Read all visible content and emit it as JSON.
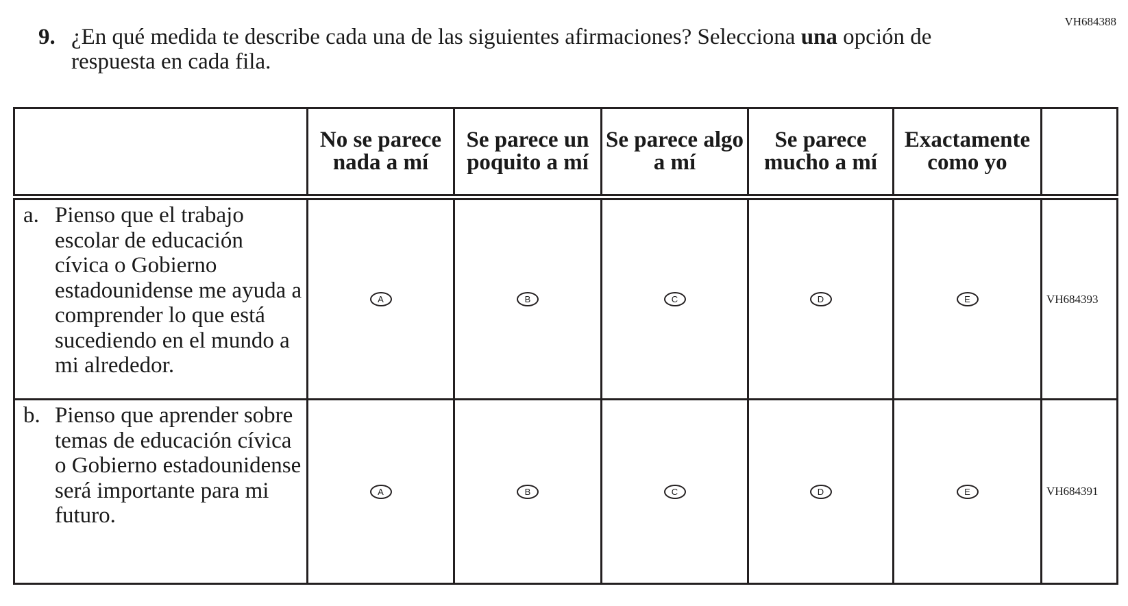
{
  "item_id": "VH684388",
  "question": {
    "number": "9.",
    "text_before": "¿En qué medida te describe cada una de las siguientes afirmaciones? Selecciona ",
    "text_bold": "una",
    "text_after": " opción de respuesta en cada fila."
  },
  "columns": [
    "No se parece nada a mí",
    "Se parece un poquito a mí",
    "Se parece algo a mí",
    "Se parece mucho a mí",
    "Exactamente como yo"
  ],
  "options": [
    "A",
    "B",
    "C",
    "D",
    "E"
  ],
  "rows": [
    {
      "letter": "a.",
      "text": "Pienso que el trabajo escolar de educación cívica o Gobierno estadounidense me ayuda a comprender lo que está sucediendo en el mundo a mi alrededor.",
      "id": "VH684393"
    },
    {
      "letter": "b.",
      "text": "Pienso que aprender sobre temas de educación cívica o Gobierno estadounidense será importante para mi futuro.",
      "id": "VH684391"
    }
  ]
}
